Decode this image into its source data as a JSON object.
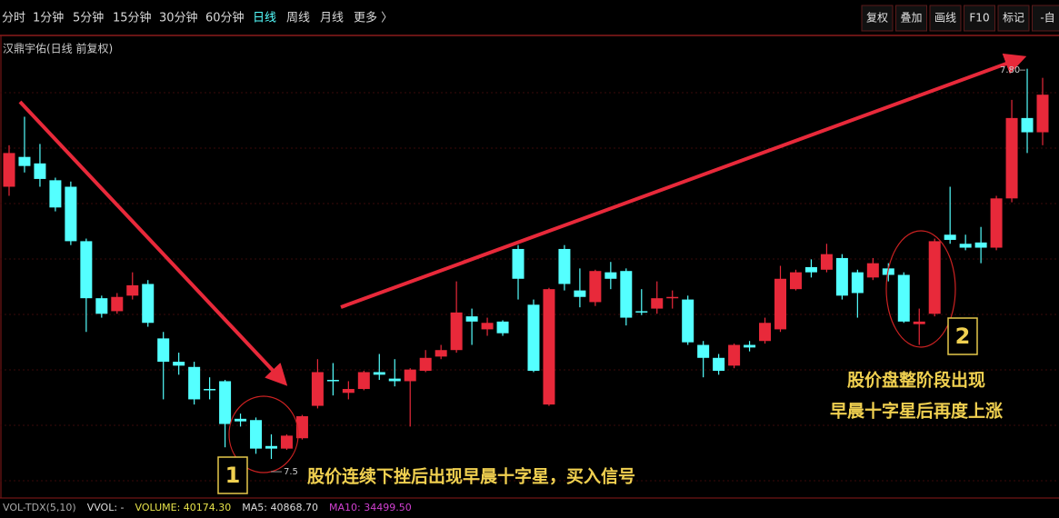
{
  "toolbar": {
    "periods": [
      "分时",
      "1分钟",
      "5分钟",
      "15分钟",
      "30分钟",
      "60分钟",
      "日线",
      "周线",
      "月线",
      "更多 〉"
    ],
    "active_period_index": 6,
    "buttons": [
      "复权",
      "叠加",
      "画线",
      "F10",
      "标记",
      "-自"
    ]
  },
  "chart_data": {
    "type": "candlestick",
    "title": "汉鼎宇佑(日线 前复权)",
    "up_color": "#e8293a",
    "down_color": "#54ffff",
    "ylim": [
      7.472,
      7.826
    ],
    "open": [
      7.71,
      7.733,
      7.728,
      7.715,
      7.71,
      7.668,
      7.624,
      7.614,
      7.626,
      7.635,
      7.593,
      7.575,
      7.571,
      7.554,
      7.56,
      7.531,
      7.53,
      7.51,
      7.508,
      7.516,
      7.541,
      7.561,
      7.551,
      7.554,
      7.567,
      7.562,
      7.56,
      7.568,
      7.579,
      7.584,
      7.61,
      7.6,
      7.606,
      7.662,
      7.619,
      7.542,
      7.662,
      7.63,
      7.621,
      7.644,
      7.645,
      7.614,
      7.616,
      7.624,
      7.623,
      7.588,
      7.578,
      7.572,
      7.588,
      7.591,
      7.6,
      7.631,
      7.648,
      7.646,
      7.655,
      7.644,
      7.64,
      7.647,
      7.642,
      7.604,
      7.612,
      7.673,
      7.666,
      7.667,
      7.663,
      7.701,
      7.763,
      7.752
    ],
    "high": [
      7.742,
      7.764,
      7.743,
      7.717,
      7.714,
      7.67,
      7.626,
      7.628,
      7.644,
      7.638,
      7.598,
      7.582,
      7.575,
      7.563,
      7.561,
      7.535,
      7.532,
      7.519,
      7.519,
      7.534,
      7.577,
      7.574,
      7.56,
      7.568,
      7.581,
      7.577,
      7.57,
      7.584,
      7.588,
      7.637,
      7.616,
      7.609,
      7.607,
      7.665,
      7.623,
      7.632,
      7.665,
      7.647,
      7.646,
      7.652,
      7.647,
      7.631,
      7.637,
      7.63,
      7.626,
      7.591,
      7.581,
      7.589,
      7.591,
      7.609,
      7.649,
      7.646,
      7.654,
      7.666,
      7.658,
      7.646,
      7.655,
      7.651,
      7.644,
      7.616,
      7.67,
      7.71,
      7.673,
      7.679,
      7.703,
      7.777,
      7.801,
      7.794
    ],
    "low": [
      7.703,
      7.721,
      7.71,
      7.691,
      7.665,
      7.598,
      7.609,
      7.612,
      7.623,
      7.602,
      7.546,
      7.565,
      7.542,
      7.546,
      7.509,
      7.525,
      7.504,
      7.5,
      7.507,
      7.515,
      7.539,
      7.549,
      7.546,
      7.553,
      7.561,
      7.556,
      7.525,
      7.567,
      7.577,
      7.582,
      7.588,
      7.595,
      7.595,
      7.623,
      7.567,
      7.541,
      7.63,
      7.617,
      7.618,
      7.631,
      7.603,
      7.611,
      7.612,
      7.616,
      7.588,
      7.563,
      7.565,
      7.57,
      7.583,
      7.589,
      7.598,
      7.63,
      7.64,
      7.644,
      7.623,
      7.609,
      7.638,
      7.637,
      7.605,
      7.588,
      7.61,
      7.666,
      7.661,
      7.651,
      7.661,
      7.698,
      7.736,
      7.742
    ],
    "close": [
      7.736,
      7.726,
      7.716,
      7.694,
      7.668,
      7.624,
      7.612,
      7.625,
      7.634,
      7.605,
      7.575,
      7.572,
      7.546,
      7.553,
      7.527,
      7.529,
      7.508,
      7.508,
      7.518,
      7.533,
      7.567,
      7.56,
      7.554,
      7.567,
      7.565,
      7.56,
      7.569,
      7.578,
      7.584,
      7.613,
      7.606,
      7.605,
      7.597,
      7.639,
      7.568,
      7.631,
      7.635,
      7.625,
      7.645,
      7.639,
      7.609,
      7.613,
      7.624,
      7.625,
      7.59,
      7.578,
      7.568,
      7.588,
      7.586,
      7.605,
      7.639,
      7.644,
      7.644,
      7.658,
      7.626,
      7.628,
      7.651,
      7.642,
      7.606,
      7.606,
      7.668,
      7.669,
      7.663,
      7.663,
      7.701,
      7.763,
      7.752,
      7.781
    ],
    "extreme_labels": [
      {
        "value": 7.5,
        "label": "7.5"
      },
      {
        "value": 7.8,
        "label": "7.80"
      }
    ],
    "annotations": [
      "1",
      "股价连续下挫后出现早晨十字星，买入信号",
      "2",
      "股价盘整阶段出现",
      "早晨十字星后再度上涨"
    ]
  },
  "indicator": {
    "items": [
      {
        "text": "VOL-TDX(5,10)",
        "color": "#aaaaaa"
      },
      {
        "text": "VVOL: -",
        "color": "#dddddd"
      },
      {
        "text": "VOLUME: 40174.30",
        "color": "#e6e24a"
      },
      {
        "text": "MA5: 40868.70",
        "color": "#dddddd"
      },
      {
        "text": "MA10: 34499.50",
        "color": "#d040d0"
      }
    ]
  }
}
